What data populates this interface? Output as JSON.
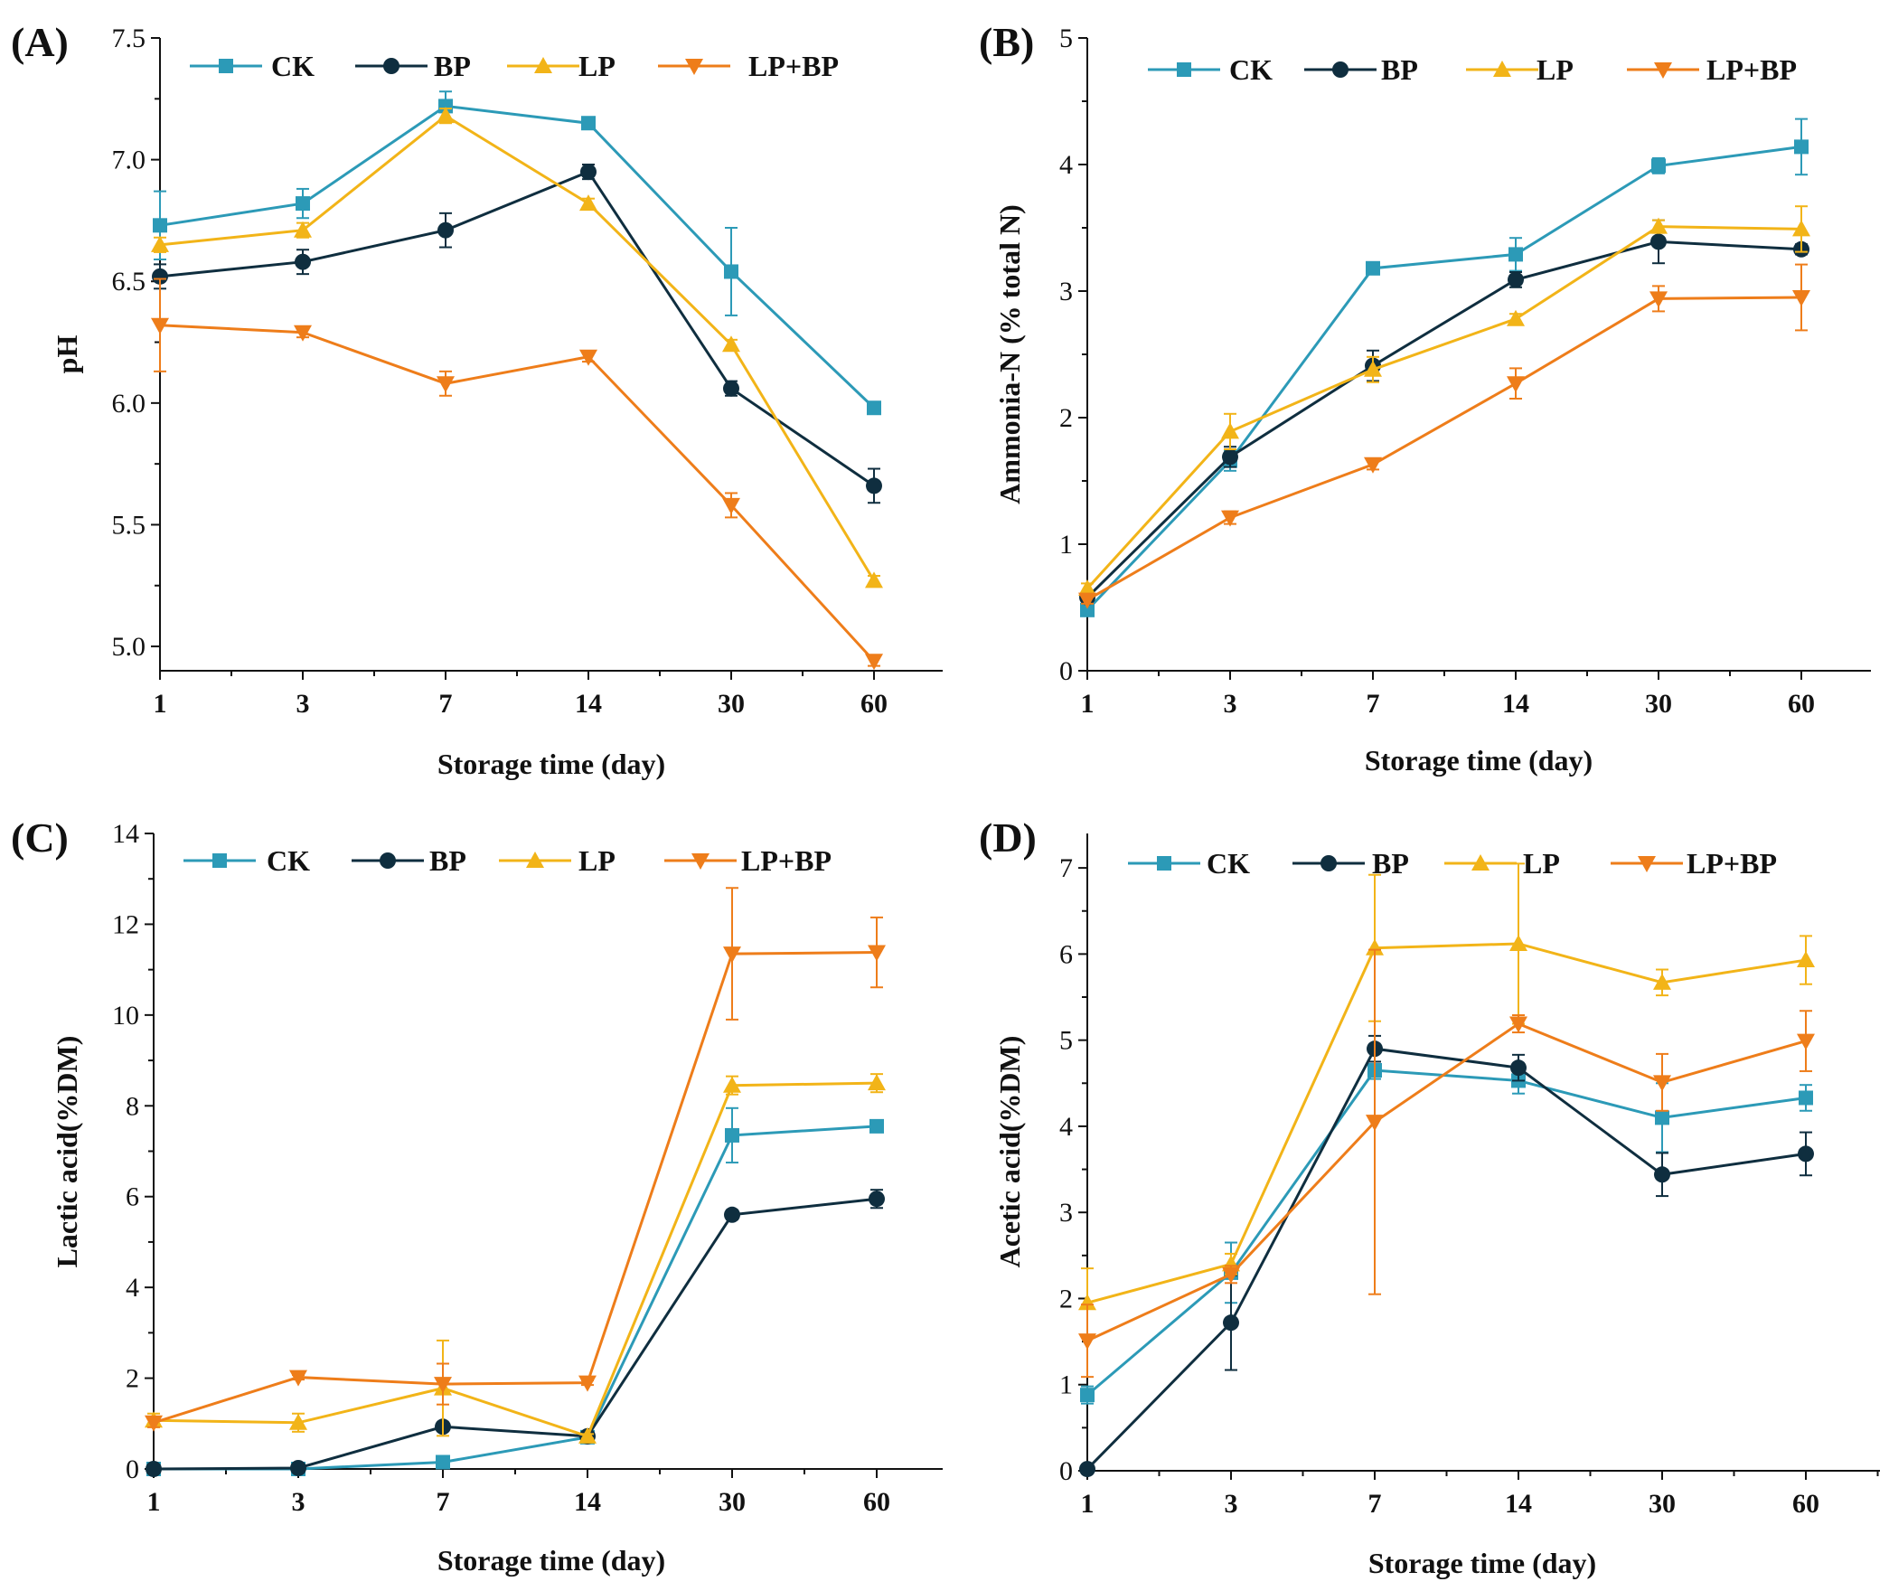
{
  "chart_data": [
    {
      "type": "line",
      "panel_label": "(A)",
      "xlabel": "Storage time (day)",
      "ylabel": "pH",
      "categories": [
        "1",
        "3",
        "7",
        "14",
        "30",
        "60"
      ],
      "ylim": [
        4.9,
        7.5
      ],
      "yticks": [
        5.0,
        5.5,
        6.0,
        6.5,
        7.0,
        7.5
      ],
      "ytick_labels": [
        "5.0",
        "5.5",
        "6.0",
        "6.5",
        "7.0",
        "7.5"
      ],
      "series": [
        {
          "name": "CK",
          "values": [
            6.73,
            6.82,
            7.22,
            7.15,
            6.54,
            5.98
          ],
          "errors": [
            0.14,
            0.06,
            0.06,
            0.01,
            0.18,
            0.01
          ]
        },
        {
          "name": "BP",
          "values": [
            6.52,
            6.58,
            6.71,
            6.95,
            6.06,
            5.66
          ],
          "errors": [
            0.05,
            0.05,
            0.07,
            0.03,
            0.03,
            0.07
          ]
        },
        {
          "name": "LP",
          "values": [
            6.65,
            6.71,
            7.18,
            6.82,
            6.24,
            5.27
          ],
          "errors": [
            0.03,
            0.03,
            0.03,
            0.02,
            0.02,
            0.02
          ]
        },
        {
          "name": "LP+BP",
          "values": [
            6.32,
            6.29,
            6.08,
            6.19,
            5.58,
            4.94
          ],
          "errors": [
            0.19,
            0.02,
            0.05,
            0.02,
            0.05,
            0.02
          ]
        }
      ]
    },
    {
      "type": "line",
      "panel_label": "(B)",
      "xlabel": "Storage time (day)",
      "ylabel": "Ammonia-N (% total N)",
      "categories": [
        "1",
        "3",
        "7",
        "14",
        "30",
        "60"
      ],
      "ylim": [
        0,
        5
      ],
      "yticks": [
        0,
        1,
        2,
        3,
        4,
        5
      ],
      "ytick_labels": [
        "0",
        "1",
        "2",
        "3",
        "4",
        "5"
      ],
      "series": [
        {
          "name": "CK",
          "values": [
            0.48,
            1.66,
            3.18,
            3.29,
            3.99,
            4.14
          ],
          "errors": [
            0.03,
            0.08,
            0.04,
            0.13,
            0.06,
            0.22
          ]
        },
        {
          "name": "BP",
          "values": [
            0.58,
            1.69,
            2.41,
            3.09,
            3.39,
            3.33
          ],
          "errors": [
            0.03,
            0.08,
            0.12,
            0.06,
            0.17,
            0.04
          ]
        },
        {
          "name": "LP",
          "values": [
            0.65,
            1.89,
            2.38,
            2.78,
            3.51,
            3.49
          ],
          "errors": [
            0.04,
            0.14,
            0.1,
            0.04,
            0.05,
            0.18
          ]
        },
        {
          "name": "LP+BP",
          "values": [
            0.56,
            1.21,
            1.63,
            2.27,
            2.94,
            2.95
          ],
          "errors": [
            0.03,
            0.05,
            0.04,
            0.12,
            0.1,
            0.26
          ]
        }
      ]
    },
    {
      "type": "line",
      "panel_label": "(C)",
      "xlabel": "Storage time (day)",
      "ylabel": "Lactic acid(%DM)",
      "categories": [
        "1",
        "3",
        "7",
        "14",
        "30",
        "60"
      ],
      "ylim": [
        0,
        14
      ],
      "yticks": [
        0,
        2,
        4,
        6,
        8,
        10,
        12,
        14
      ],
      "ytick_labels": [
        "0",
        "2",
        "4",
        "6",
        "8",
        "10",
        "12",
        "14"
      ],
      "series": [
        {
          "name": "CK",
          "values": [
            0.0,
            0.0,
            0.15,
            0.7,
            7.35,
            7.55
          ],
          "errors": [
            0.02,
            0.01,
            0.1,
            0.05,
            0.6,
            0.1
          ]
        },
        {
          "name": "BP",
          "values": [
            0.0,
            0.02,
            0.93,
            0.72,
            5.6,
            5.95
          ],
          "errors": [
            0.02,
            0.02,
            0.05,
            0.05,
            0.1,
            0.2
          ]
        },
        {
          "name": "LP",
          "values": [
            1.07,
            1.02,
            1.78,
            0.72,
            8.45,
            8.5
          ],
          "errors": [
            0.15,
            0.2,
            1.05,
            0.05,
            0.2,
            0.2
          ]
        },
        {
          "name": "LP+BP",
          "values": [
            1.02,
            2.02,
            1.87,
            1.9,
            11.35,
            11.38
          ],
          "errors": [
            0.1,
            0.05,
            0.45,
            0.05,
            1.45,
            0.77
          ]
        }
      ]
    },
    {
      "type": "line",
      "panel_label": "(D)",
      "xlabel": "Storage time (day)",
      "ylabel": "Acetic acid(%DM)",
      "categories": [
        "1",
        "3",
        "7",
        "14",
        "30",
        "60"
      ],
      "ylim": [
        0,
        7.4
      ],
      "yticks": [
        0,
        1,
        2,
        3,
        4,
        5,
        6,
        7
      ],
      "ytick_labels": [
        "0",
        "1",
        "2",
        "3",
        "4",
        "5",
        "6",
        "7"
      ],
      "series": [
        {
          "name": "CK",
          "values": [
            0.88,
            2.3,
            4.65,
            4.53,
            4.1,
            4.33
          ],
          "errors": [
            0.1,
            0.35,
            0.1,
            0.15,
            0.4,
            0.15
          ]
        },
        {
          "name": "BP",
          "values": [
            0.02,
            1.72,
            4.9,
            4.68,
            3.44,
            3.68
          ],
          "errors": [
            0.05,
            0.55,
            0.15,
            0.15,
            0.25,
            0.25
          ]
        },
        {
          "name": "LP",
          "values": [
            1.95,
            2.4,
            6.07,
            6.12,
            5.67,
            5.93
          ],
          "errors": [
            0.4,
            0.12,
            0.85,
            0.93,
            0.15,
            0.28
          ]
        },
        {
          "name": "LP+BP",
          "values": [
            1.51,
            2.28,
            4.05,
            5.19,
            4.51,
            4.99
          ],
          "errors": [
            0.42,
            0.1,
            2.0,
            0.1,
            0.33,
            0.35
          ]
        }
      ]
    }
  ],
  "legend": [
    {
      "name": "CK",
      "marker": "square",
      "color": "#2C9AB7"
    },
    {
      "name": "BP",
      "marker": "circle",
      "color": "#0F2E3F"
    },
    {
      "name": "LP",
      "marker": "triangle-up",
      "color": "#F2B418"
    },
    {
      "name": "LP+BP",
      "marker": "triangle-down",
      "color": "#EE7D1A"
    }
  ]
}
